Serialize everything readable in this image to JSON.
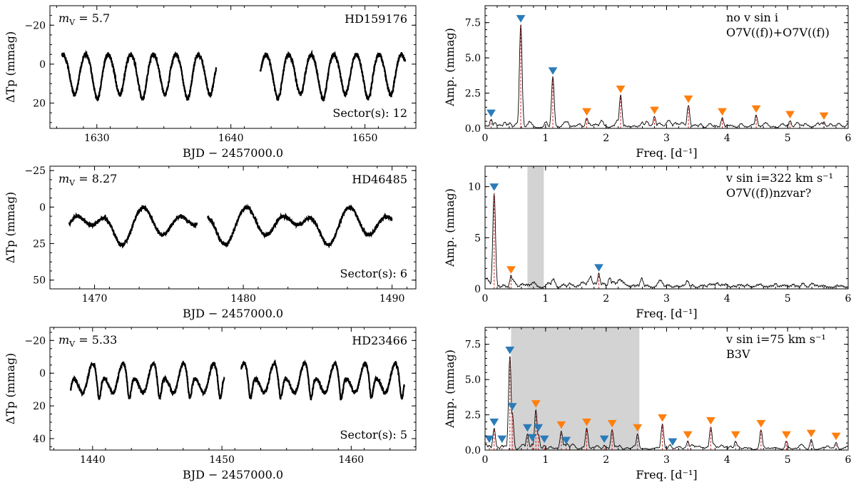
{
  "colors": {
    "blue": "#2b7bb9",
    "orange": "#ff7f0e",
    "red": "#d62728",
    "shade": "#d3d3d3",
    "line": "#000000"
  },
  "chart_data": [
    {
      "type": "scatter",
      "panel": "lc-1",
      "mag_label": "5.7",
      "star": "HD159176",
      "sector_label": "Sector(s): 12",
      "xlabel": "BJD − 2457000.0",
      "ylabel": "ΔTp (mmag)",
      "xlim": [
        1626.5,
        1653.8
      ],
      "ylim": [
        33,
        -30
      ],
      "xticks": [
        1630,
        1640,
        1650
      ],
      "xtick_labels": [
        "1630",
        "1640",
        "1650"
      ],
      "yticks": [
        -20,
        0,
        20
      ],
      "ytick_labels": [
        "−20",
        "0",
        "20"
      ],
      "segments": [
        [
          1627.4,
          1638.9
        ],
        [
          1642.2,
          1653.0
        ]
      ],
      "period": 3.367,
      "amp": 10,
      "dip_depth": 11,
      "dip_width": 0.08,
      "base": 1,
      "phase_dips": [
        0.06,
        0.56
      ]
    },
    {
      "type": "scatter",
      "panel": "lc-2",
      "mag_label": "8.27",
      "star": "HD46485",
      "sector_label": "Sector(s): 6",
      "xlabel": "BJD − 2457000.0",
      "ylabel": "ΔTp (mmag)",
      "xlim": [
        1467.0,
        1491.6
      ],
      "ylim": [
        56,
        -28
      ],
      "xticks": [
        1470,
        1480,
        1490
      ],
      "xtick_labels": [
        "1470",
        "1480",
        "1490"
      ],
      "yticks": [
        -25,
        0,
        25,
        50
      ],
      "ytick_labels": [
        "−25",
        "0",
        "25",
        "50"
      ],
      "segments": [
        [
          1468.3,
          1476.9
        ],
        [
          1477.6,
          1490.0
        ]
      ],
      "period": 6.93,
      "amp": 10,
      "dip_depth": 28,
      "dip_width": 0.1,
      "base": 5,
      "phase_dips": [
        0.66
      ]
    },
    {
      "type": "scatter",
      "panel": "lc-3",
      "mag_label": "5.33",
      "star": "HD23466",
      "sector_label": "Sector(s): 5",
      "xlabel": "BJD − 2457000.0",
      "ylabel": "ΔTp (mmag)",
      "xlim": [
        1436.7,
        1465.0
      ],
      "ylim": [
        47,
        -28
      ],
      "xticks": [
        1440,
        1450,
        1460
      ],
      "xtick_labels": [
        "1440",
        "1450",
        "1460"
      ],
      "yticks": [
        -20,
        0,
        20,
        40
      ],
      "ytick_labels": [
        "−20",
        "0",
        "20",
        "40"
      ],
      "segments": [
        [
          1438.3,
          1450.2
        ],
        [
          1451.5,
          1464.1
        ]
      ],
      "period": 2.34,
      "amp": 13,
      "dip_depth": 14,
      "dip_width": 0.06,
      "base": 3,
      "phase_dips": [
        0.62
      ]
    },
    {
      "type": "line",
      "panel": "ps-1",
      "label_line1": "no v sin i",
      "label_line2": "O7V((f))+O7V((f))",
      "xlabel": "Freq. [d⁻¹]",
      "ylabel": "Amp. (mmag)",
      "xlim": [
        0,
        6
      ],
      "ylim": [
        0,
        8.7
      ],
      "xticks": [
        0,
        1,
        2,
        3,
        4,
        5,
        6
      ],
      "xtick_labels": [
        "0",
        "1",
        "2",
        "3",
        "4",
        "5",
        "6"
      ],
      "yticks": [
        0,
        2.5,
        5,
        7.5
      ],
      "ytick_labels": [
        "0.0",
        "2.5",
        "5.0",
        "7.5"
      ],
      "noise": 0.45,
      "shaded": null,
      "peaks": [
        {
          "f": 0.1,
          "a": 0.6,
          "marker": "blue"
        },
        {
          "f": 0.59,
          "a": 7.3,
          "marker": "blue"
        },
        {
          "f": 1.12,
          "a": 3.6,
          "marker": "blue"
        },
        {
          "f": 1.68,
          "a": 0.7,
          "marker": "orange"
        },
        {
          "f": 2.24,
          "a": 2.3,
          "marker": "orange"
        },
        {
          "f": 2.8,
          "a": 0.8,
          "marker": "orange"
        },
        {
          "f": 3.36,
          "a": 1.6,
          "marker": "orange"
        },
        {
          "f": 3.92,
          "a": 0.7,
          "marker": "orange"
        },
        {
          "f": 4.48,
          "a": 0.9,
          "marker": "orange"
        },
        {
          "f": 5.04,
          "a": 0.5,
          "marker": "orange"
        },
        {
          "f": 5.6,
          "a": 0.4,
          "marker": "orange"
        }
      ]
    },
    {
      "type": "line",
      "panel": "ps-2",
      "label_line1": "v sin i=322 km s⁻¹",
      "label_line2": "O7V((f))nzvar?",
      "xlabel": "Freq. [d⁻¹]",
      "ylabel": "Amp. (mmag)",
      "xlim": [
        0,
        6
      ],
      "ylim": [
        0,
        12
      ],
      "xticks": [
        0,
        1,
        2,
        3,
        4,
        5,
        6
      ],
      "xtick_labels": [
        "0",
        "1",
        "2",
        "3",
        "4",
        "5",
        "6"
      ],
      "yticks": [
        0,
        5,
        10
      ],
      "ytick_labels": [
        "0",
        "5",
        "10"
      ],
      "noise": 1.0,
      "shaded": [
        0.7,
        0.97
      ],
      "peaks": [
        {
          "f": 0.15,
          "a": 9.3,
          "marker": "blue"
        },
        {
          "f": 0.43,
          "a": 1.2,
          "marker": "orange"
        },
        {
          "f": 1.88,
          "a": 1.4,
          "marker": "blue"
        }
      ]
    },
    {
      "type": "line",
      "panel": "ps-3",
      "label_line1": "v sin i=75 km s⁻¹",
      "label_line2": "B3V",
      "xlabel": "Freq. [d⁻¹]",
      "ylabel": "Amp. (mmag)",
      "xlim": [
        0,
        6
      ],
      "ylim": [
        0,
        8.7
      ],
      "xticks": [
        0,
        1,
        2,
        3,
        4,
        5,
        6
      ],
      "xtick_labels": [
        "0",
        "1",
        "2",
        "3",
        "4",
        "5",
        "6"
      ],
      "yticks": [
        0,
        2.5,
        5,
        7.5
      ],
      "ytick_labels": [
        "0.0",
        "2.5",
        "5.0",
        "7.5"
      ],
      "noise": 0.35,
      "shaded": [
        0.43,
        2.55
      ],
      "peaks": [
        {
          "f": 0.07,
          "a": 0.3,
          "marker": "blue"
        },
        {
          "f": 0.15,
          "a": 1.5,
          "marker": "blue"
        },
        {
          "f": 0.28,
          "a": 0.3,
          "marker": "blue"
        },
        {
          "f": 0.41,
          "a": 6.6,
          "marker": "blue"
        },
        {
          "f": 0.45,
          "a": 2.6,
          "marker": "blue"
        },
        {
          "f": 0.7,
          "a": 1.1,
          "marker": "blue"
        },
        {
          "f": 0.78,
          "a": 0.4,
          "marker": "blue"
        },
        {
          "f": 0.84,
          "a": 2.8,
          "marker": "orange"
        },
        {
          "f": 0.88,
          "a": 1.1,
          "marker": "blue"
        },
        {
          "f": 0.98,
          "a": 0.3,
          "marker": "blue"
        },
        {
          "f": 1.26,
          "a": 1.3,
          "marker": "orange"
        },
        {
          "f": 1.34,
          "a": 0.2,
          "marker": "blue"
        },
        {
          "f": 1.68,
          "a": 1.5,
          "marker": "orange"
        },
        {
          "f": 1.97,
          "a": 0.3,
          "marker": "blue"
        },
        {
          "f": 2.1,
          "a": 1.4,
          "marker": "orange"
        },
        {
          "f": 2.52,
          "a": 1.1,
          "marker": "orange"
        },
        {
          "f": 2.93,
          "a": 1.8,
          "marker": "orange"
        },
        {
          "f": 3.1,
          "a": 0.1,
          "marker": "blue"
        },
        {
          "f": 3.35,
          "a": 0.6,
          "marker": "orange"
        },
        {
          "f": 3.73,
          "a": 1.6,
          "marker": "orange"
        },
        {
          "f": 4.14,
          "a": 0.6,
          "marker": "orange"
        },
        {
          "f": 4.56,
          "a": 1.4,
          "marker": "orange"
        },
        {
          "f": 4.98,
          "a": 0.6,
          "marker": "orange"
        },
        {
          "f": 5.39,
          "a": 0.7,
          "marker": "orange"
        },
        {
          "f": 5.8,
          "a": 0.5,
          "marker": "orange"
        }
      ]
    }
  ]
}
